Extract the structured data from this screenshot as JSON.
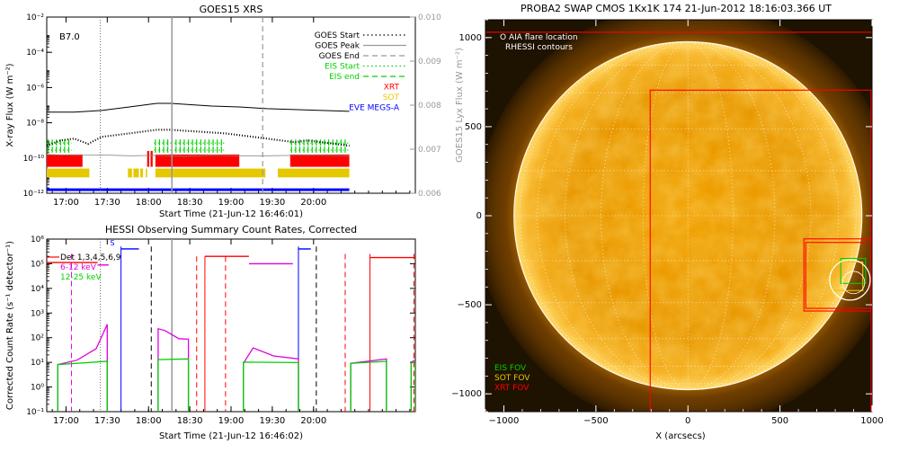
{
  "colors": {
    "red": "#ff0000",
    "yellow": "#e6c800",
    "green": "#00d000",
    "blue": "#0000ff",
    "magenta": "#e000e0",
    "gray": "#999999",
    "black": "#000000",
    "sun_orange": "#f5a300",
    "sun_bright": "#ffd15a",
    "sun_dark": "#b86e00"
  },
  "chart_data": [
    {
      "type": "line",
      "title": "GOES15 XRS",
      "panel_label": "B7.0",
      "xlabel": "Start Time (21-Jun-12 16:46:01)",
      "ylabel": "X-ray Flux (W m⁻²)",
      "ylabel_right": "GOES15 Lyx Flux (W m⁻²)",
      "x_range_min": [
        0,
        268
      ],
      "x_ticks": [
        {
          "min": 14,
          "label": "17:00"
        },
        {
          "min": 44,
          "label": "17:30"
        },
        {
          "min": 74,
          "label": "18:00"
        },
        {
          "min": 104,
          "label": "18:30"
        },
        {
          "min": 134,
          "label": "19:00"
        },
        {
          "min": 164,
          "label": "19:30"
        },
        {
          "min": 194,
          "label": "20:00"
        }
      ],
      "y_log_range": [
        -12,
        -2
      ],
      "y_ticks": [
        "10⁻¹²",
        "10⁻¹⁰",
        "10⁻⁸",
        "10⁻⁶",
        "10⁻⁴",
        "10⁻²"
      ],
      "y_right_range": [
        0.006,
        0.01
      ],
      "y_right_ticks": [
        "0.006",
        "0.007",
        "0.008",
        "0.009",
        "0.010"
      ],
      "legend": [
        {
          "label": "GOES Start",
          "color": "#000000",
          "dash": "dotted"
        },
        {
          "label": "GOES Peak",
          "color": "#999999",
          "dash": "solid"
        },
        {
          "label": "GOES End",
          "color": "#999999",
          "dash": "dashed"
        },
        {
          "label": "EIS Start",
          "color": "#00d000",
          "dash": "dotted"
        },
        {
          "label": "EIS end",
          "color": "#00d000",
          "dash": "dashed"
        },
        {
          "label": "XRT",
          "color": "#ff0000",
          "dash": "solid"
        },
        {
          "label": "SOT",
          "color": "#e6c800",
          "dash": "solid"
        },
        {
          "label": "EVE MEGS-A",
          "color": "#0000ff",
          "dash": "solid"
        }
      ],
      "goes_start_min": 39,
      "goes_peak_min": 91,
      "goes_end_min": 157,
      "series_long": {
        "name": "",
        "x": [
          0,
          20,
          40,
          60,
          70,
          80,
          90,
          100,
          110,
          120,
          140,
          160,
          180,
          200,
          220
        ],
        "log_y": [
          -7.4,
          -7.4,
          -7.3,
          -7.1,
          -7.0,
          -6.9,
          -6.9,
          -6.95,
          -7.0,
          -7.05,
          -7.1,
          -7.2,
          -7.25,
          -7.3,
          -7.35
        ]
      },
      "series_short": {
        "name": "",
        "x": [
          0,
          10,
          20,
          30,
          40,
          50,
          60,
          70,
          80,
          90,
          100,
          110,
          120,
          130,
          140,
          150,
          160,
          170,
          180,
          190,
          200,
          210,
          220
        ],
        "log_y": [
          -9.3,
          -9.0,
          -8.9,
          -9.2,
          -8.8,
          -8.7,
          -8.6,
          -8.5,
          -8.4,
          -8.4,
          -8.45,
          -8.5,
          -8.55,
          -8.6,
          -8.7,
          -8.8,
          -8.9,
          -9.0,
          -9.1,
          -9.0,
          -9.1,
          -9.2,
          -9.3
        ]
      },
      "series_lya": {
        "name": "",
        "x": [
          0,
          20,
          40,
          60,
          80,
          100,
          120,
          140,
          160,
          180,
          200,
          220
        ],
        "y": [
          0.00688,
          0.00686,
          0.00687,
          0.00685,
          0.00686,
          0.00684,
          0.00686,
          0.00685,
          0.00685,
          0.00686,
          0.00686,
          0.00685
        ]
      },
      "eis_intervals": [
        [
          0,
          18
        ],
        [
          78,
          130
        ],
        [
          177,
          220
        ]
      ],
      "xrt_intervals": [
        [
          0,
          26
        ],
        [
          73,
          74.5
        ],
        [
          75.5,
          77
        ],
        [
          79,
          140
        ],
        [
          177,
          220
        ]
      ],
      "sot_intervals": [
        [
          0,
          31
        ],
        [
          59,
          62
        ],
        [
          63,
          67
        ],
        [
          68,
          70
        ],
        [
          72,
          73
        ],
        [
          79,
          159
        ],
        [
          168,
          220
        ]
      ],
      "eve_interval": [
        0,
        220
      ]
    },
    {
      "type": "line",
      "title": "HESSI Observing Summary Count Rates, Corrected",
      "xlabel": "Start Time (21-Jun-12 16:46:02)",
      "ylabel": "Corrected Count Rate (s⁻¹ detector⁻¹)",
      "x_range_min": [
        0,
        268
      ],
      "x_ticks": [
        {
          "min": 14,
          "label": "17:00"
        },
        {
          "min": 44,
          "label": "17:30"
        },
        {
          "min": 74,
          "label": "18:00"
        },
        {
          "min": 104,
          "label": "18:30"
        },
        {
          "min": 134,
          "label": "19:00"
        },
        {
          "min": 164,
          "label": "19:30"
        },
        {
          "min": 194,
          "label": "20:00"
        }
      ],
      "y_log_range": [
        -1,
        6
      ],
      "y_ticks": [
        "10⁻¹",
        "10⁰",
        "10¹",
        "10²",
        "10³",
        "10⁴",
        "10⁵",
        "10⁶"
      ],
      "legend": [
        {
          "label": "Det 1,3,4,5,6,9",
          "color": "#ff0000"
        },
        {
          "label": "6-12 keV",
          "color": "#e000e0"
        },
        {
          "label": "12-25 keV",
          "color": "#00d000"
        }
      ],
      "annotation": "S",
      "goes_start_min": 39,
      "goes_peak_min": 91,
      "low_series": {
        "name": "12-25 keV",
        "color": "#00d000",
        "segments": [
          {
            "x": [
              8,
              44
            ],
            "log_y": [
              0.95,
              1.0
            ]
          },
          {
            "x": [
              81,
              103
            ],
            "log_y": [
              1.15,
              1.1
            ]
          },
          {
            "x": [
              143,
              183
            ],
            "log_y": [
              1.05,
              0.95
            ]
          },
          {
            "x": [
              221,
              247
            ],
            "log_y": [
              1.0,
              1.0
            ]
          },
          {
            "x": [
              265,
              268
            ],
            "log_y": [
              1.0,
              1.0
            ]
          }
        ]
      },
      "mag_series": {
        "name": "6-12 keV",
        "color": "#e000e0",
        "segments": [
          {
            "x": [
              8,
              22,
              36,
              44
            ],
            "log_y": [
              0.95,
              1.05,
              1.6,
              2.5
            ]
          },
          {
            "x": [
              81,
              86,
              96,
              103
            ],
            "log_y": [
              2.4,
              2.25,
              2.0,
              1.9
            ]
          },
          {
            "x": [
              143,
              150,
              165,
              183
            ],
            "log_y": [
              1.0,
              1.55,
              1.3,
              1.1
            ]
          },
          {
            "x": [
              221,
              247
            ],
            "log_y": [
              1.0,
              1.1
            ]
          },
          {
            "x": [
              265,
              268
            ],
            "log_y": [
              1.05,
              1.05
            ]
          }
        ]
      },
      "high_series": [
        {
          "color": "#ff0000",
          "x": [
            0,
            37
          ],
          "log_y": [
            5.05,
            5.05
          ]
        },
        {
          "color": "#e000e0",
          "x": [
            37,
            45
          ],
          "log_y": [
            4.95,
            4.95
          ]
        },
        {
          "color": "#0000ff",
          "x": [
            54,
            67
          ],
          "log_y": [
            5.6,
            5.6
          ]
        },
        {
          "color": "#ff0000",
          "x": [
            115,
            147
          ],
          "log_y": [
            5.3,
            5.3
          ]
        },
        {
          "color": "#e000e0",
          "x": [
            147,
            179
          ],
          "log_y": [
            5.0,
            5.0
          ]
        },
        {
          "color": "#0000ff",
          "x": [
            183,
            192
          ],
          "log_y": [
            5.6,
            5.6
          ]
        },
        {
          "color": "#ff0000",
          "x": [
            235,
            268
          ],
          "log_y": [
            5.25,
            5.25
          ]
        }
      ],
      "night_boundaries": [
        {
          "min": 18,
          "color": "#e000e0",
          "dash": "dashed",
          "log_top": 5.4
        },
        {
          "min": 54,
          "color": "#0000ff",
          "dash": "solid",
          "log_top": 5.7
        },
        {
          "min": 76,
          "color": "#000000",
          "dash": "dashed",
          "log_top": 5.7
        },
        {
          "min": 109,
          "color": "#ff0000",
          "dash": "dashed",
          "log_top": 5.3
        },
        {
          "min": 115,
          "color": "#ff0000",
          "dash": "solid",
          "log_top": 5.3
        },
        {
          "min": 130,
          "color": "#ff0000",
          "dash": "dashed",
          "log_top": 5.3
        },
        {
          "min": 183,
          "color": "#0000ff",
          "dash": "solid",
          "log_top": 5.7
        },
        {
          "min": 196,
          "color": "#000000",
          "dash": "dashed",
          "log_top": 5.7
        },
        {
          "min": 217,
          "color": "#ff0000",
          "dash": "dashed",
          "log_top": 5.4
        },
        {
          "min": 235,
          "color": "#ff0000",
          "dash": "solid",
          "log_top": 5.4
        },
        {
          "min": 267,
          "color": "#ff0000",
          "dash": "dashed",
          "log_top": 5.4
        }
      ]
    },
    {
      "type": "heatmap",
      "title": "PROBA2 SWAP CMOS 1Kx1K 174 21-Jun-2012 18:16:03.366 UT",
      "xlabel": "X (arcsecs)",
      "ylabel": "",
      "xlim": [
        -1100,
        1000
      ],
      "ylim": [
        -1100,
        1100
      ],
      "x_ticks": [
        -1000,
        -500,
        0,
        500,
        1000
      ],
      "y_ticks": [
        -1000,
        -500,
        0,
        500,
        1000
      ],
      "legend_top": [
        "O AIA flare location",
        "RHESSI contours"
      ],
      "legend_bottom": [
        {
          "label": "EIS FOV",
          "color": "#00d000"
        },
        {
          "label": "SOT FOV",
          "color": "#e6c800"
        },
        {
          "label": "XRT FOV",
          "color": "#ff0000"
        }
      ],
      "solar_radius_arcsec": 945,
      "fov_boxes": [
        {
          "name": "XRT large",
          "color": "#ff0000",
          "x0": -1100,
          "x1": 1000,
          "y0": -1100,
          "y1": 1030
        },
        {
          "name": "XRT medium",
          "color": "#ff0000",
          "x0": -205,
          "x1": 995,
          "y0": -1100,
          "y1": 705
        },
        {
          "name": "XRT small",
          "color": "#ff0000",
          "x0": 630,
          "x1": 1060,
          "y0": -535,
          "y1": -130
        },
        {
          "name": "XRT small 2",
          "color": "#ff0000",
          "x0": 640,
          "x1": 1050,
          "y0": -520,
          "y1": -150
        },
        {
          "name": "SOT",
          "color": "#e6c800",
          "x0": 780,
          "x1": 950,
          "y0": -420,
          "y1": -260
        },
        {
          "name": "EIS",
          "color": "#00d000",
          "x0": 830,
          "x1": 965,
          "y0": -380,
          "y1": -240
        }
      ],
      "flare_location": {
        "x": 880,
        "y": -360,
        "r": 110
      }
    }
  ]
}
